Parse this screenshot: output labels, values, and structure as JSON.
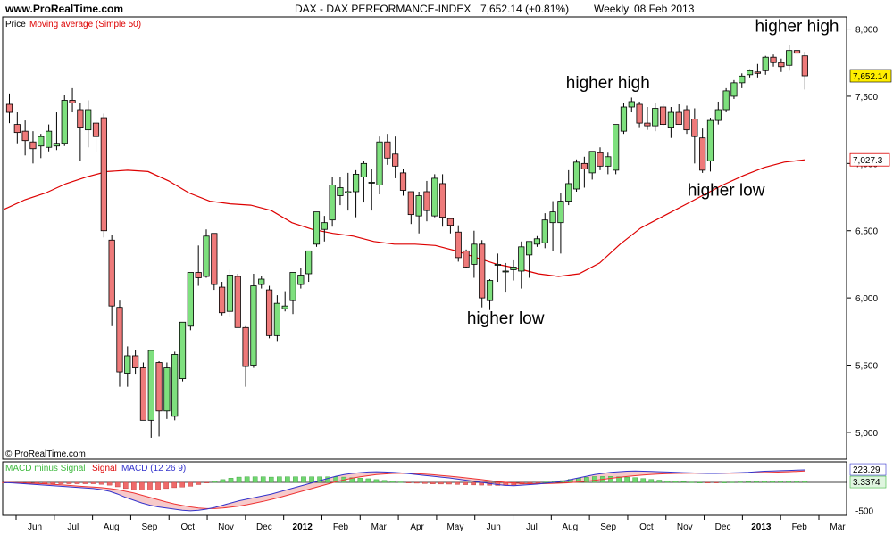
{
  "header": {
    "site": "www.ProRealTime.com",
    "instrument": "DAX - DAX PERFORMANCE-INDEX",
    "quote": "7,652.14 (+0.81%)",
    "period": "Weekly",
    "date": "08 Feb 2013"
  },
  "legend": {
    "price": "Price",
    "ma": "Moving average (Simple 50)"
  },
  "copyright": "© ProRealTime.com",
  "macd_legend": {
    "hist": "MACD minus Signal",
    "signal": "Signal",
    "macd": "MACD (12 26 9)"
  },
  "colors": {
    "up": "#7ee07e",
    "down": "#ee7a7a",
    "ma": "#dd0000",
    "macd": "#3333cc",
    "signal": "#ee3333",
    "price_badge": "#ffee00"
  },
  "chart_data": [
    {
      "type": "candlestick",
      "ylim": [
        4900,
        8050
      ],
      "yticks": [
        5000,
        5500,
        6000,
        6500,
        7000,
        7500,
        8000
      ],
      "ytick_labels": [
        "5,000",
        "5,500",
        "6,000",
        "6,500",
        "7,000",
        "7,500",
        "8,000"
      ],
      "xlabels": [
        "Jun",
        "Jul",
        "Aug",
        "Sep",
        "Oct",
        "Nov",
        "Dec",
        "2012",
        "Feb",
        "Mar",
        "Apr",
        "May",
        "Jun",
        "Jul",
        "Aug",
        "Sep",
        "Oct",
        "Nov",
        "Dec",
        "2013",
        "Feb",
        "Mar"
      ],
      "last_price_label": "7,652.14",
      "ma_last_label": "7,027.3",
      "candles": [
        {
          "o": 7440,
          "h": 7520,
          "l": 7300,
          "c": 7380
        },
        {
          "o": 7290,
          "h": 7380,
          "l": 7150,
          "c": 7230
        },
        {
          "o": 7240,
          "h": 7320,
          "l": 7060,
          "c": 7170
        },
        {
          "o": 7160,
          "h": 7240,
          "l": 7000,
          "c": 7110
        },
        {
          "o": 7130,
          "h": 7220,
          "l": 7040,
          "c": 7200
        },
        {
          "o": 7120,
          "h": 7290,
          "l": 7090,
          "c": 7240
        },
        {
          "o": 7130,
          "h": 7380,
          "l": 7100,
          "c": 7150
        },
        {
          "o": 7150,
          "h": 7510,
          "l": 7130,
          "c": 7470
        },
        {
          "o": 7470,
          "h": 7560,
          "l": 7380,
          "c": 7450
        },
        {
          "o": 7400,
          "h": 7450,
          "l": 7020,
          "c": 7270
        },
        {
          "o": 7250,
          "h": 7470,
          "l": 7120,
          "c": 7400
        },
        {
          "o": 7300,
          "h": 7320,
          "l": 7080,
          "c": 7200
        },
        {
          "o": 7340,
          "h": 7370,
          "l": 6450,
          "c": 6500
        },
        {
          "o": 6430,
          "h": 6470,
          "l": 5790,
          "c": 5940
        },
        {
          "o": 5930,
          "h": 5980,
          "l": 5340,
          "c": 5450
        },
        {
          "o": 5440,
          "h": 5640,
          "l": 5340,
          "c": 5570
        },
        {
          "o": 5570,
          "h": 5610,
          "l": 5430,
          "c": 5480
        },
        {
          "o": 5480,
          "h": 5520,
          "l": 5100,
          "c": 5090
        },
        {
          "o": 5090,
          "h": 5610,
          "l": 4960,
          "c": 5610
        },
        {
          "o": 5520,
          "h": 5530,
          "l": 4970,
          "c": 5160
        },
        {
          "o": 5160,
          "h": 5520,
          "l": 5100,
          "c": 5480
        },
        {
          "o": 5120,
          "h": 5600,
          "l": 5090,
          "c": 5580
        },
        {
          "o": 5400,
          "h": 5820,
          "l": 5380,
          "c": 5820
        },
        {
          "o": 5790,
          "h": 6180,
          "l": 5760,
          "c": 6190
        },
        {
          "o": 6190,
          "h": 6390,
          "l": 6090,
          "c": 6150
        },
        {
          "o": 6160,
          "h": 6510,
          "l": 6150,
          "c": 6460
        },
        {
          "o": 6480,
          "h": 6460,
          "l": 6060,
          "c": 6100
        },
        {
          "o": 6080,
          "h": 6120,
          "l": 5870,
          "c": 5890
        },
        {
          "o": 5900,
          "h": 6210,
          "l": 5860,
          "c": 6170
        },
        {
          "o": 6160,
          "h": 6180,
          "l": 5780,
          "c": 5780
        },
        {
          "o": 5780,
          "h": 5790,
          "l": 5340,
          "c": 5490
        },
        {
          "o": 5500,
          "h": 6180,
          "l": 5480,
          "c": 6090
        },
        {
          "o": 6100,
          "h": 6160,
          "l": 6070,
          "c": 6140
        },
        {
          "o": 6060,
          "h": 6090,
          "l": 5700,
          "c": 5720
        },
        {
          "o": 5720,
          "h": 6020,
          "l": 5680,
          "c": 5960
        },
        {
          "o": 5920,
          "h": 6050,
          "l": 5900,
          "c": 5940
        },
        {
          "o": 5980,
          "h": 6190,
          "l": 5880,
          "c": 6190
        },
        {
          "o": 6100,
          "h": 6220,
          "l": 6070,
          "c": 6170
        },
        {
          "o": 6180,
          "h": 6350,
          "l": 6120,
          "c": 6350
        },
        {
          "o": 6400,
          "h": 6630,
          "l": 6380,
          "c": 6640
        },
        {
          "o": 6510,
          "h": 6610,
          "l": 6420,
          "c": 6560
        },
        {
          "o": 6580,
          "h": 6900,
          "l": 6530,
          "c": 6840
        },
        {
          "o": 6760,
          "h": 6900,
          "l": 6690,
          "c": 6820
        },
        {
          "o": 6780,
          "h": 6930,
          "l": 6650,
          "c": 6790
        },
        {
          "o": 6790,
          "h": 6950,
          "l": 6600,
          "c": 6920
        },
        {
          "o": 6900,
          "h": 7020,
          "l": 6710,
          "c": 7000
        },
        {
          "o": 6860,
          "h": 6960,
          "l": 6650,
          "c": 6860
        },
        {
          "o": 6840,
          "h": 7200,
          "l": 6770,
          "c": 7160
        },
        {
          "o": 7160,
          "h": 7220,
          "l": 6990,
          "c": 7040
        },
        {
          "o": 7070,
          "h": 7200,
          "l": 6890,
          "c": 6980
        },
        {
          "o": 6930,
          "h": 6960,
          "l": 6760,
          "c": 6800
        },
        {
          "o": 6790,
          "h": 6790,
          "l": 6550,
          "c": 6620
        },
        {
          "o": 6610,
          "h": 6790,
          "l": 6480,
          "c": 6760
        },
        {
          "o": 6790,
          "h": 6870,
          "l": 6570,
          "c": 6650
        },
        {
          "o": 6610,
          "h": 6920,
          "l": 6600,
          "c": 6890
        },
        {
          "o": 6850,
          "h": 6920,
          "l": 6530,
          "c": 6600
        },
        {
          "o": 6590,
          "h": 6580,
          "l": 6480,
          "c": 6540
        },
        {
          "o": 6490,
          "h": 6540,
          "l": 6270,
          "c": 6300
        },
        {
          "o": 6350,
          "h": 6360,
          "l": 6220,
          "c": 6230
        },
        {
          "o": 6250,
          "h": 6500,
          "l": 6150,
          "c": 6400
        },
        {
          "o": 6400,
          "h": 6430,
          "l": 5930,
          "c": 6000
        },
        {
          "o": 5980,
          "h": 6140,
          "l": 5910,
          "c": 6130
        },
        {
          "o": 6250,
          "h": 6330,
          "l": 6120,
          "c": 6250
        },
        {
          "o": 6200,
          "h": 6260,
          "l": 6040,
          "c": 6200
        },
        {
          "o": 6210,
          "h": 6280,
          "l": 6130,
          "c": 6230
        },
        {
          "o": 6200,
          "h": 6420,
          "l": 6070,
          "c": 6380
        },
        {
          "o": 6320,
          "h": 6410,
          "l": 6150,
          "c": 6420
        },
        {
          "o": 6400,
          "h": 6460,
          "l": 6380,
          "c": 6440
        },
        {
          "o": 6410,
          "h": 6630,
          "l": 6370,
          "c": 6580
        },
        {
          "o": 6560,
          "h": 6720,
          "l": 6350,
          "c": 6640
        },
        {
          "o": 6560,
          "h": 6780,
          "l": 6330,
          "c": 6720
        },
        {
          "o": 6720,
          "h": 6950,
          "l": 6690,
          "c": 6850
        },
        {
          "o": 6810,
          "h": 7030,
          "l": 6790,
          "c": 7010
        },
        {
          "o": 7000,
          "h": 7050,
          "l": 6820,
          "c": 6960
        },
        {
          "o": 6930,
          "h": 7080,
          "l": 6880,
          "c": 7090
        },
        {
          "o": 7080,
          "h": 7120,
          "l": 6950,
          "c": 6980
        },
        {
          "o": 6980,
          "h": 7080,
          "l": 6920,
          "c": 7050
        },
        {
          "o": 6950,
          "h": 7290,
          "l": 6920,
          "c": 7290
        },
        {
          "o": 7240,
          "h": 7450,
          "l": 7220,
          "c": 7420
        },
        {
          "o": 7420,
          "h": 7490,
          "l": 7380,
          "c": 7460
        },
        {
          "o": 7440,
          "h": 7460,
          "l": 7270,
          "c": 7300
        },
        {
          "o": 7300,
          "h": 7420,
          "l": 7250,
          "c": 7280
        },
        {
          "o": 7280,
          "h": 7450,
          "l": 7240,
          "c": 7410
        },
        {
          "o": 7420,
          "h": 7440,
          "l": 7280,
          "c": 7290
        },
        {
          "o": 7270,
          "h": 7420,
          "l": 7190,
          "c": 7380
        },
        {
          "o": 7380,
          "h": 7440,
          "l": 7290,
          "c": 7290
        },
        {
          "o": 7400,
          "h": 7430,
          "l": 7220,
          "c": 7250
        },
        {
          "o": 7330,
          "h": 7410,
          "l": 7000,
          "c": 7200
        },
        {
          "o": 7190,
          "h": 7260,
          "l": 6930,
          "c": 6950
        },
        {
          "o": 7020,
          "h": 7340,
          "l": 6940,
          "c": 7320
        },
        {
          "o": 7320,
          "h": 7460,
          "l": 7290,
          "c": 7400
        },
        {
          "o": 7400,
          "h": 7560,
          "l": 7380,
          "c": 7540
        },
        {
          "o": 7500,
          "h": 7620,
          "l": 7480,
          "c": 7600
        },
        {
          "o": 7600,
          "h": 7670,
          "l": 7560,
          "c": 7650
        },
        {
          "o": 7660,
          "h": 7700,
          "l": 7640,
          "c": 7690
        },
        {
          "o": 7680,
          "h": 7740,
          "l": 7640,
          "c": 7670
        },
        {
          "o": 7690,
          "h": 7800,
          "l": 7660,
          "c": 7790
        },
        {
          "o": 7790,
          "h": 7810,
          "l": 7720,
          "c": 7750
        },
        {
          "o": 7750,
          "h": 7780,
          "l": 7680,
          "c": 7720
        },
        {
          "o": 7730,
          "h": 7880,
          "l": 7690,
          "c": 7840
        },
        {
          "o": 7840,
          "h": 7870,
          "l": 7800,
          "c": 7820
        },
        {
          "o": 7800,
          "h": 7830,
          "l": 7550,
          "c": 7652
        }
      ],
      "moving_average": [
        [
          6660,
          6730,
          6780,
          6850,
          6900,
          6940,
          6950,
          6940,
          6870,
          6780,
          6720,
          6700,
          6690,
          6650
        ],
        [
          6560,
          6510,
          6480,
          6460,
          6420,
          6400,
          6400,
          6390,
          6350,
          6300,
          6250,
          6220,
          6180,
          6160
        ],
        [
          6180,
          6260,
          6400,
          6520,
          6600,
          6680,
          6760,
          6840,
          6910,
          6970,
          7010,
          7027.3
        ]
      ],
      "annotations": [
        {
          "text": "higher high",
          "candle": 76,
          "price": 7560
        },
        {
          "text": "higher high",
          "candle": 100,
          "price": 7980
        },
        {
          "text": "higher low",
          "candle": 63,
          "price": 5810
        },
        {
          "text": "higher low",
          "candle": 91,
          "price": 6760
        }
      ]
    },
    {
      "type": "bar+line",
      "title": "MACD (12 26 9)",
      "ylim": [
        -560,
        320
      ],
      "ytick_labels": [
        "-500"
      ],
      "yticks": [
        -500
      ],
      "macd_last_label": "223.29",
      "hist_last_label": "3.3374",
      "macd": [
        -5,
        -10,
        -20,
        -30,
        -40,
        -50,
        -60,
        -70,
        -80,
        -90,
        -100,
        -110,
        -130,
        -160,
        -210,
        -270,
        -320,
        -370,
        -410,
        -440,
        -460,
        -480,
        -500,
        -510,
        -500,
        -480,
        -450,
        -410,
        -370,
        -330,
        -300,
        -270,
        -240,
        -210,
        -170,
        -130,
        -90,
        -50,
        -10,
        30,
        70,
        110,
        140,
        160,
        175,
        185,
        190,
        185,
        180,
        170,
        155,
        140,
        125,
        110,
        95,
        80,
        60,
        40,
        20,
        0,
        -20,
        -40,
        -55,
        -60,
        -50,
        -40,
        -30,
        -15,
        0,
        20,
        50,
        80,
        110,
        140,
        160,
        180,
        190,
        200,
        205,
        200,
        195,
        190,
        185,
        180,
        175,
        170,
        165,
        160,
        160,
        165,
        170,
        175,
        180,
        190,
        200,
        205,
        210,
        215,
        220,
        223.29
      ],
      "signal": [
        0,
        -5,
        -10,
        -15,
        -20,
        -25,
        -35,
        -45,
        -55,
        -65,
        -75,
        -85,
        -95,
        -110,
        -130,
        -160,
        -190,
        -230,
        -270,
        -310,
        -350,
        -385,
        -415,
        -440,
        -460,
        -470,
        -470,
        -460,
        -445,
        -425,
        -400,
        -370,
        -340,
        -305,
        -270,
        -230,
        -190,
        -150,
        -110,
        -70,
        -30,
        10,
        45,
        75,
        100,
        120,
        140,
        150,
        160,
        162,
        160,
        155,
        147,
        137,
        125,
        112,
        98,
        82,
        66,
        49,
        32,
        15,
        0,
        -12,
        -20,
        -24,
        -24,
        -22,
        -18,
        -12,
        -4,
        6,
        20,
        36,
        54,
        72,
        90,
        106,
        120,
        132,
        142,
        150,
        156,
        160,
        162,
        164,
        164,
        164,
        163,
        163,
        164,
        166,
        168,
        172,
        176,
        181,
        186,
        191,
        197,
        203,
        208
      ],
      "histogram": [
        -5,
        -5,
        -10,
        -15,
        -20,
        -25,
        -25,
        -25,
        -25,
        -25,
        -25,
        -25,
        -35,
        -50,
        -80,
        -110,
        -130,
        -140,
        -140,
        -130,
        -110,
        -95,
        -85,
        -70,
        -40,
        -10,
        20,
        50,
        75,
        95,
        100,
        100,
        100,
        95,
        100,
        100,
        100,
        100,
        100,
        100,
        100,
        100,
        95,
        85,
        75,
        65,
        50,
        35,
        20,
        8,
        -5,
        -15,
        -22,
        -27,
        -30,
        -32,
        -38,
        -42,
        -46,
        -49,
        -52,
        -55,
        -55,
        -48,
        -30,
        -16,
        -6,
        7,
        18,
        32,
        54,
        74,
        90,
        104,
        106,
        108,
        100,
        94,
        85,
        68,
        53,
        40,
        29,
        20,
        13,
        6,
        1,
        -4,
        -3,
        2,
        6,
        9,
        12,
        18,
        24,
        24,
        24,
        24,
        23,
        20,
        3.3374
      ]
    }
  ],
  "annotations_text": {
    "higher_high": "higher high",
    "higher_low": "higher low"
  }
}
